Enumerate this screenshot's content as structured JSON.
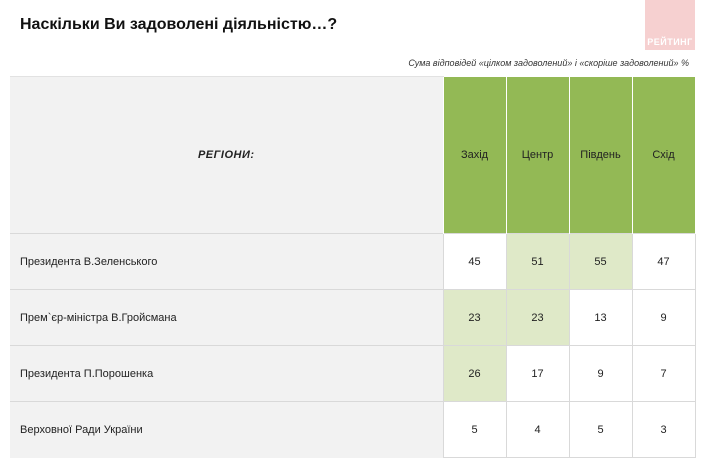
{
  "title": "Наскільки Ви задоволені діяльністю…?",
  "logo": {
    "text": "РЕЙТИНГ",
    "color": "#f6d0d0"
  },
  "note": "Сума відповідей «цілком задоволений» і «скоріше задоволений» %",
  "chart_data": {
    "type": "table",
    "row_header_label": "РЕГІОНИ:",
    "categories": [
      "Захід",
      "Центр",
      "Південь",
      "Схід"
    ],
    "rows": [
      {
        "label": "Президента В.Зеленського",
        "values": [
          45,
          51,
          55,
          47
        ],
        "highlight": [
          false,
          true,
          true,
          false
        ]
      },
      {
        "label": "Прем`єр-міністра В.Гройсмана",
        "values": [
          23,
          23,
          13,
          9
        ],
        "highlight": [
          true,
          true,
          false,
          false
        ]
      },
      {
        "label": "Президента П.Порошенка",
        "values": [
          26,
          17,
          9,
          7
        ],
        "highlight": [
          true,
          false,
          false,
          false
        ]
      },
      {
        "label": "Верховної Ради України",
        "values": [
          5,
          4,
          5,
          3
        ],
        "highlight": [
          false,
          false,
          false,
          false
        ]
      }
    ],
    "colors": {
      "header": "#93b955",
      "highlight": "#dfe9c8",
      "label": "#8db34a",
      "row_bg": "#f2f2f2"
    }
  }
}
